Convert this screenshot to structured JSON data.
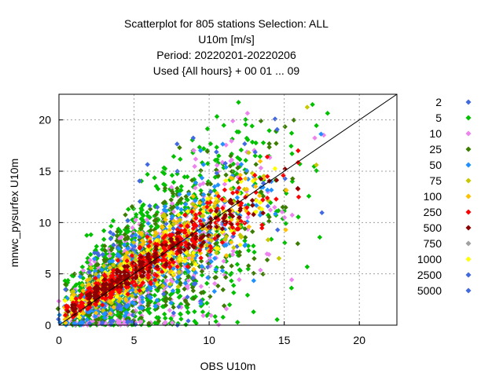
{
  "chart_data": {
    "type": "scatter",
    "title_lines": [
      "Scatterplot for  805 stations Selection: ALL",
      "U10m [m/s]",
      "Period: 20220201-20220206",
      "Used {All hours} + 00 01 ... 09"
    ],
    "xlabel": "OBS U10m",
    "ylabel": "mnwc_pysurfex U10m",
    "xlim": [
      0,
      22.5
    ],
    "ylim": [
      0,
      22.5
    ],
    "xticks": [
      0,
      5,
      10,
      15,
      20
    ],
    "yticks": [
      0,
      5,
      10,
      15,
      20
    ],
    "grid": true,
    "diagonal_line": "y = x",
    "legend_position": "right",
    "legend": [
      {
        "label": "2",
        "color": "#4169e1"
      },
      {
        "label": "5",
        "color": "#00c000"
      },
      {
        "label": "10",
        "color": "#ee82ee"
      },
      {
        "label": "25",
        "color": "#3a7d00"
      },
      {
        "label": "50",
        "color": "#1e90ff"
      },
      {
        "label": "75",
        "color": "#c8c800"
      },
      {
        "label": "100",
        "color": "#ffc000"
      },
      {
        "label": "250",
        "color": "#ff0000"
      },
      {
        "label": "500",
        "color": "#8b0000"
      },
      {
        "label": "750",
        "color": "#a0a0a0"
      },
      {
        "label": "1000",
        "color": "#ffff00"
      },
      {
        "label": "2500",
        "color": "#4169e1"
      },
      {
        "label": "5000",
        "color": "#4169e1"
      }
    ],
    "density_note": "point counts per bin; band widens with wind speed, centered near y = x"
  }
}
